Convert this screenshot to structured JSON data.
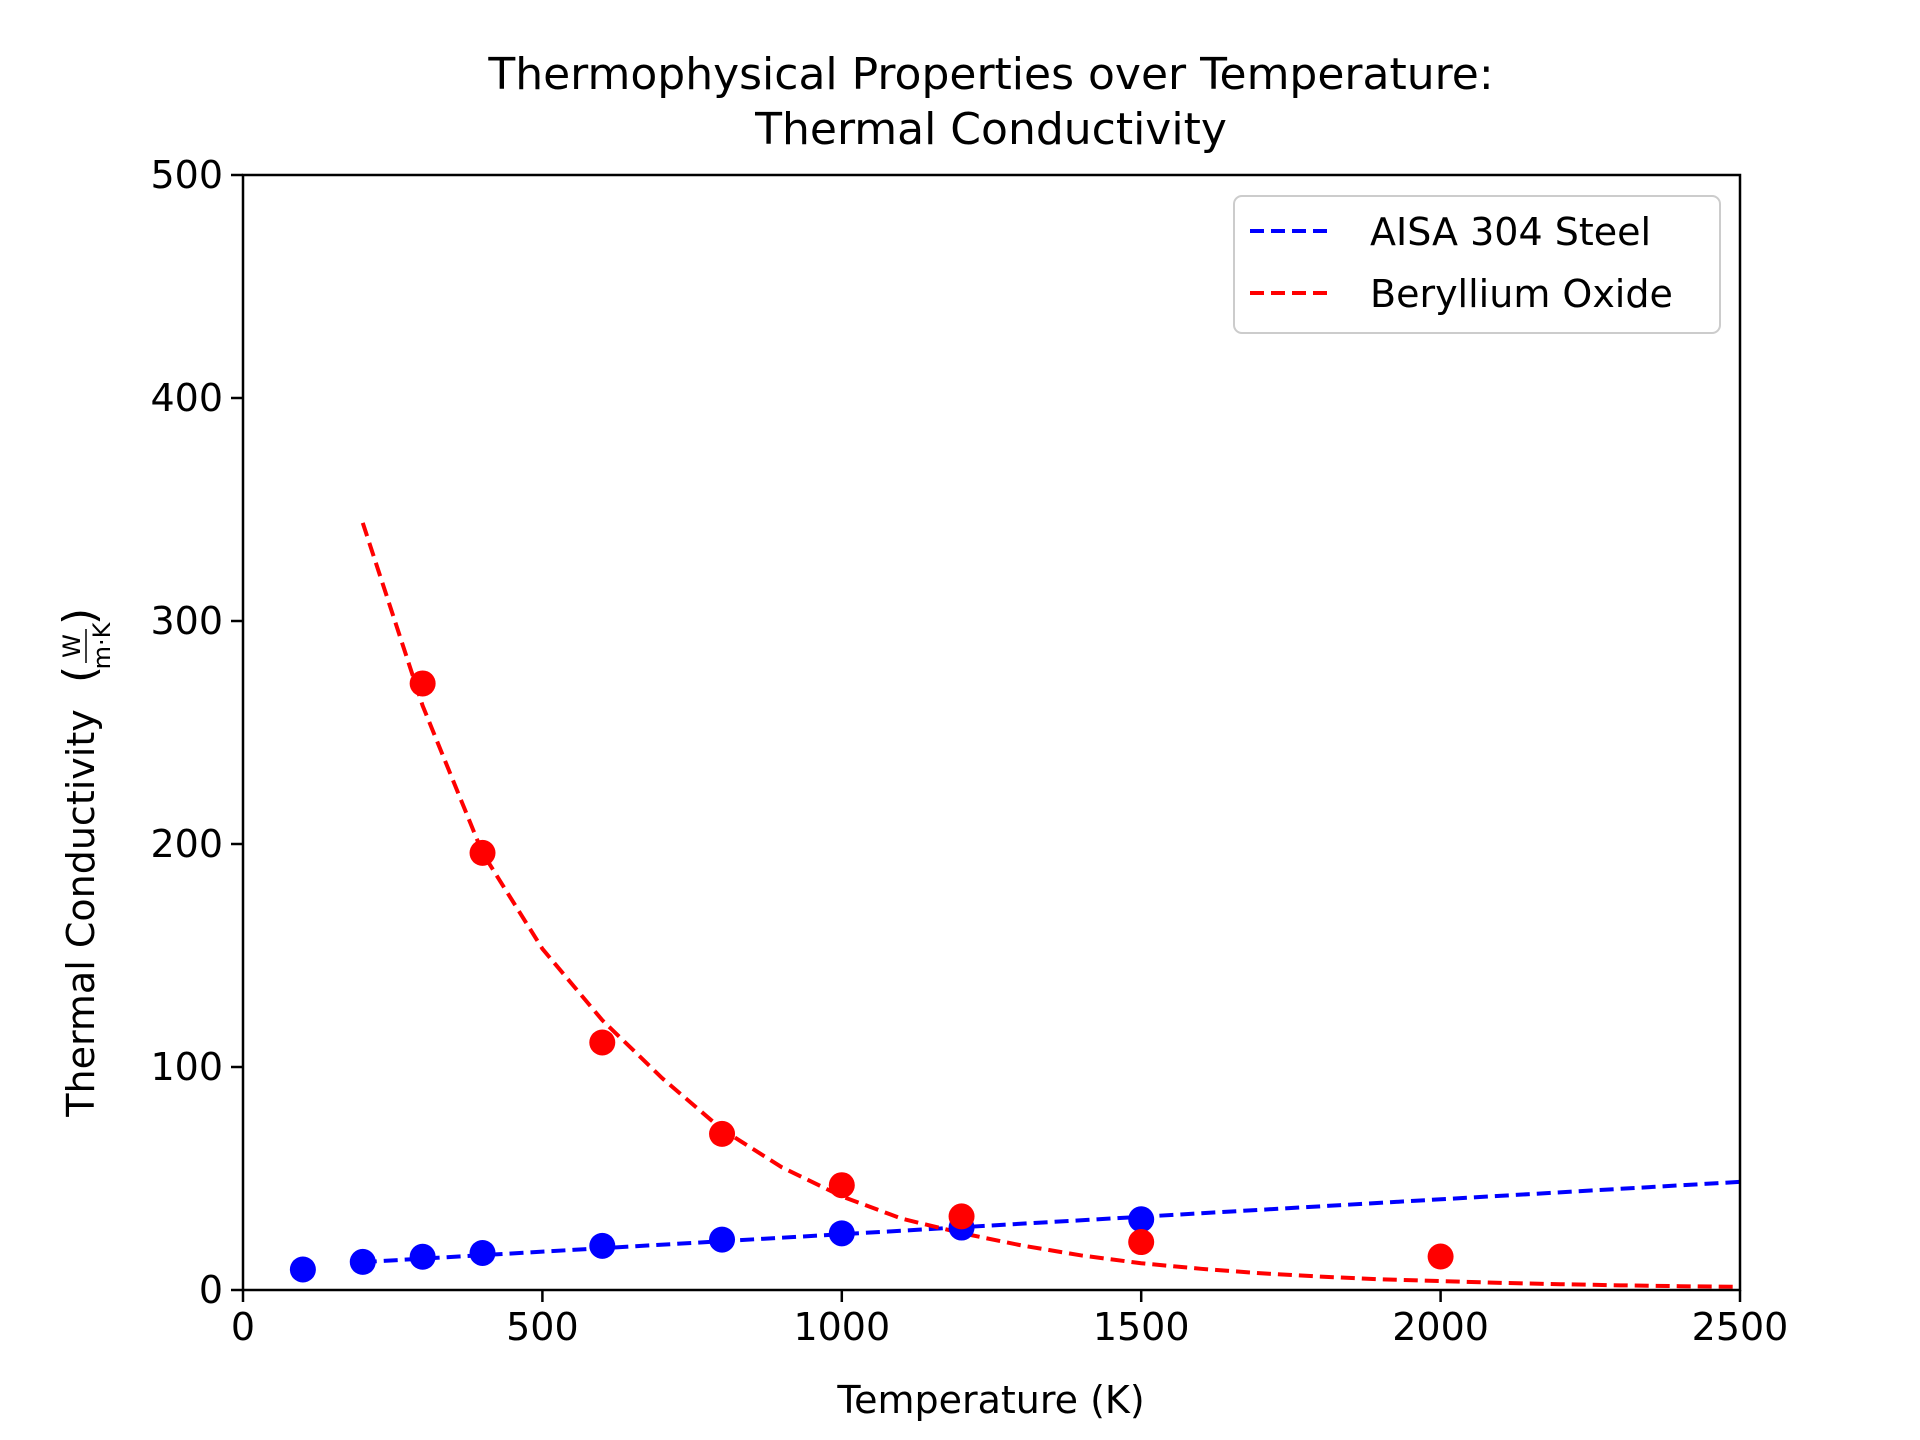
{
  "chart_data": {
    "type": "scatter",
    "title": "Thermophysical Properties over Temperature:",
    "subtitle": "Thermal Conductivity",
    "xlabel": "Temperature (K)",
    "ylabel": "Thermal Conductivity",
    "ylabel_unit_num": "W",
    "ylabel_unit_den": "m·K",
    "xlim": [
      0,
      2500
    ],
    "ylim": [
      0,
      500
    ],
    "xticks": [
      0,
      500,
      1000,
      1500,
      2000,
      2500
    ],
    "yticks": [
      0,
      100,
      200,
      300,
      400,
      500
    ],
    "grid": false,
    "legend_position": "top-right",
    "series": [
      {
        "name": "AISA 304 Steel",
        "color": "#0000ff",
        "points": {
          "x": [
            100,
            200,
            300,
            400,
            600,
            800,
            1000,
            1200,
            1500
          ],
          "y": [
            9.2,
            12.6,
            14.9,
            16.6,
            19.8,
            22.6,
            25.4,
            28.0,
            31.7
          ]
        },
        "fit": {
          "x": [
            200,
            2500
          ],
          "y": [
            12.5,
            48.5
          ]
        }
      },
      {
        "name": "Beryllium Oxide",
        "color": "#ff0000",
        "points": {
          "x": [
            300,
            400,
            600,
            800,
            1000,
            1200,
            1500,
            2000
          ],
          "y": [
            272,
            196,
            111,
            70,
            47,
            33,
            21.5,
            15
          ]
        },
        "fit": {
          "x": [
            200,
            300,
            400,
            500,
            600,
            700,
            800,
            900,
            1000,
            1100,
            1200,
            1300,
            1400,
            1500,
            1600,
            1700,
            1800,
            1900,
            2000,
            2100,
            2200,
            2300,
            2400,
            2500
          ],
          "y": [
            344,
            262,
            196,
            153,
            121,
            95,
            72,
            55,
            42,
            32,
            25.5,
            20,
            15.5,
            12,
            9.5,
            7.5,
            6,
            4.8,
            4,
            3.2,
            2.6,
            2.1,
            1.7,
            1.4
          ]
        }
      }
    ]
  }
}
